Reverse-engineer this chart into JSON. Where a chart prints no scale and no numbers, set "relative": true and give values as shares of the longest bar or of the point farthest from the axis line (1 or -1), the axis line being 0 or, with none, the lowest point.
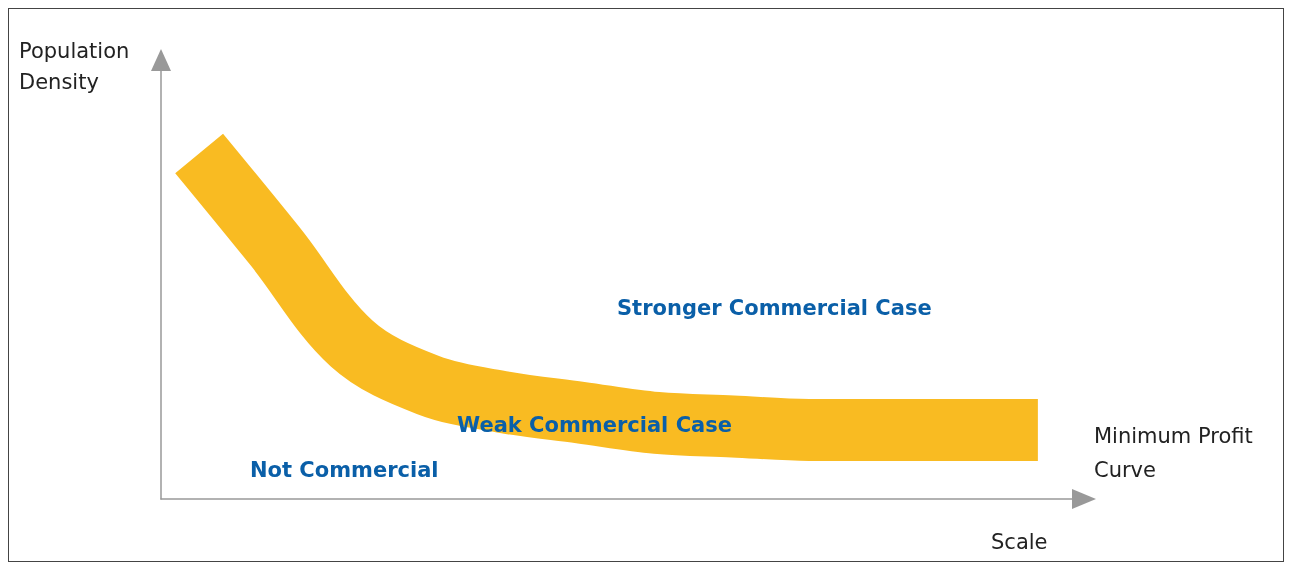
{
  "chart_data": {
    "type": "line",
    "relative": true,
    "xlabel": "Scale",
    "ylabel": "Population Density",
    "categories": [
      null,
      null,
      null,
      null,
      null,
      null,
      null,
      null,
      null,
      null,
      null,
      null
    ],
    "series": [
      {
        "name": "Minimum Profit Curve",
        "color": "#f9bb22",
        "values": [
          1.0,
          0.73,
          0.45,
          0.33,
          0.28,
          0.25,
          0.22,
          0.21,
          0.2,
          0.2,
          0.2,
          0.2
        ]
      }
    ],
    "annotations": [
      "Stronger Commercial Case",
      "Weak Commercial Case",
      "Not Commercial"
    ],
    "legend": false,
    "grid": false
  }
}
